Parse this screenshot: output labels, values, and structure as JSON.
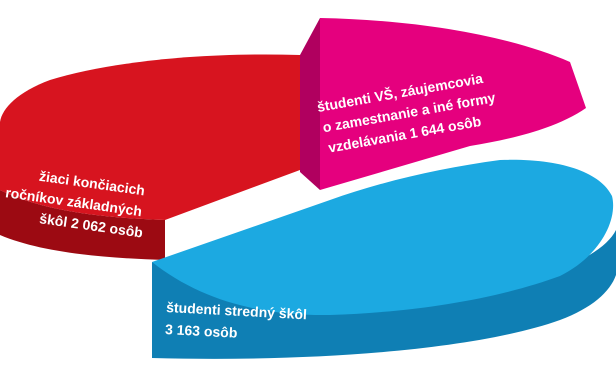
{
  "chart_data": {
    "type": "pie",
    "title": "",
    "unit": "osôb",
    "slices": [
      {
        "label_lines": [
          "študenti VŠ, záujemcovia",
          "o zamestnanie a iné formy",
          "vzdelávania 1 644 osôb"
        ],
        "category": "študenti VŠ, záujemcovia o zamestnanie a iné formy vzdelávania",
        "value": 1644,
        "color": "#e5007e",
        "side_color": "#b0005f"
      },
      {
        "label_lines": [
          "študenti stredný škôl",
          "3 163 osôb"
        ],
        "category": "študenti stredný škôl",
        "value": 3163,
        "color": "#1ca9e1",
        "side_color": "#0f7fb4"
      },
      {
        "label_lines": [
          "žiaci končiacich",
          "ročníkov základných",
          "škôl 2 062 osôb"
        ],
        "category": "žiaci končiacich ročníkov základných škôl",
        "value": 2062,
        "color": "#d7141f",
        "side_color": "#9c0a12"
      }
    ]
  }
}
